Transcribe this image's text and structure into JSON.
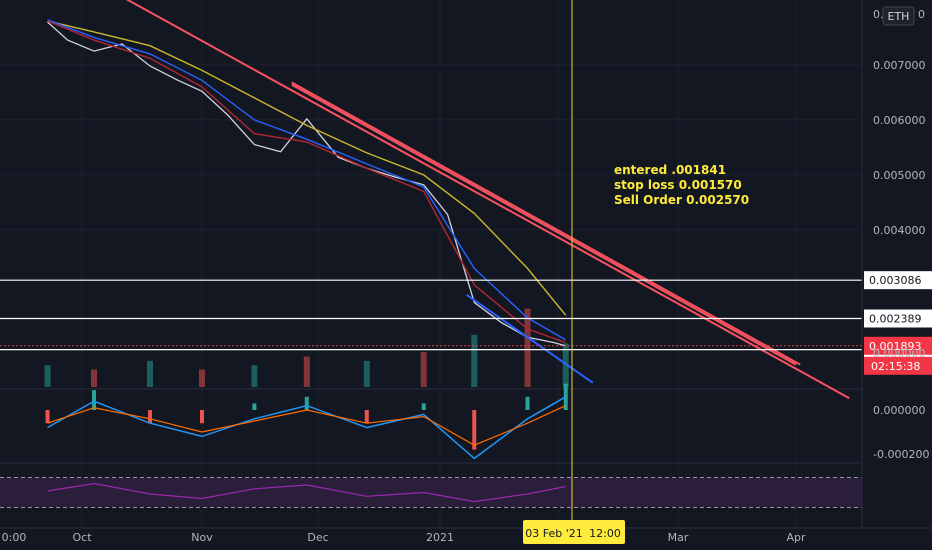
{
  "chart_data": {
    "type": "line",
    "title": "",
    "currency_badge": "ETH",
    "price_axis": {
      "ticks": [
        "0.007000",
        "0.006000",
        "0.005000",
        "0.004000"
      ],
      "top_partial_label": "0.",
      "top_partial_suffix": "0",
      "range": [
        0.00118,
        0.00818
      ]
    },
    "x_axis": {
      "ticks": [
        "0:00",
        "Oct",
        "Nov",
        "Dec",
        "2021",
        "Mar",
        "Apr"
      ]
    },
    "crosshair": {
      "date_label": "03 Feb '21",
      "time_label": "12:00"
    },
    "horizontal_levels": [
      {
        "value": "0.003086",
        "color": "#ffffff"
      },
      {
        "value": "0.002389",
        "color": "#ffffff"
      },
      {
        "value": "0.001823",
        "color": "#ffffff"
      }
    ],
    "last_price": {
      "value": "0.001893",
      "countdown": "02:15:38",
      "color": "#f23645"
    },
    "annotation": [
      "entered .001841",
      "stop loss 0.001570",
      "Sell Order 0.002570"
    ],
    "series": [
      {
        "name": "",
        "color": "#d1d4dc",
        "role": "price",
        "x": [
          "Sep 20",
          "Sep 27",
          "Oct 4",
          "Oct 11",
          "Oct 18",
          "Oct 25",
          "Nov 1",
          "Nov 8",
          "Nov 15",
          "Nov 22",
          "Nov 29",
          "Dec 6",
          "Dec 13",
          "Dec 20",
          "Dec 27",
          "Jan 3",
          "Jan 10",
          "Jan 17",
          "Jan 24",
          "Jan 31",
          "Feb 3"
        ],
        "values": [
          0.00778,
          0.00745,
          0.00725,
          0.00738,
          0.00698,
          0.00672,
          0.00652,
          0.00608,
          0.00555,
          0.00542,
          0.00602,
          0.00532,
          0.00512,
          0.00496,
          0.00482,
          0.00428,
          0.00268,
          0.00232,
          0.00205,
          0.00195,
          0.00189
        ]
      },
      {
        "name": "",
        "color": "#c9b82d",
        "role": "moving-average",
        "x": [
          "Sep 20",
          "Oct 4",
          "Oct 18",
          "Nov 1",
          "Nov 15",
          "Nov 29",
          "Dec 13",
          "Dec 27",
          "Jan 10",
          "Jan 24",
          "Feb 3"
        ],
        "values": [
          0.0078,
          0.0076,
          0.00735,
          0.0069,
          0.0064,
          0.0059,
          0.0054,
          0.005,
          0.0043,
          0.0033,
          0.00245
        ]
      },
      {
        "name": "",
        "color": "#2962ff",
        "role": "moving-average",
        "x": [
          "Sep 20",
          "Oct 4",
          "Oct 18",
          "Nov 1",
          "Nov 15",
          "Nov 29",
          "Dec 13",
          "Dec 27",
          "Jan 10",
          "Jan 24",
          "Feb 3"
        ],
        "values": [
          0.00782,
          0.0075,
          0.0072,
          0.00672,
          0.006,
          0.00565,
          0.0052,
          0.00478,
          0.0033,
          0.0024,
          0.002
        ]
      },
      {
        "name": "",
        "color": "#b22833",
        "role": "moving-average",
        "x": [
          "Sep 20",
          "Oct 4",
          "Oct 18",
          "Nov 1",
          "Nov 15",
          "Nov 29",
          "Dec 13",
          "Dec 27",
          "Jan 10",
          "Jan 24",
          "Feb 3"
        ],
        "values": [
          0.0078,
          0.00745,
          0.00712,
          0.0066,
          0.00575,
          0.0056,
          0.00512,
          0.0047,
          0.003,
          0.0022,
          0.00195
        ]
      }
    ],
    "trendlines": [
      {
        "color": "#f7525f",
        "from": [
          "Oct 10",
          0.00828
        ],
        "to": [
          "Apr 15",
          0.00094
        ]
      },
      {
        "color": "#f7525f",
        "from": [
          "Nov 25",
          0.00668
        ],
        "to": [
          "Mar 30",
          0.00155
        ]
      },
      {
        "color": "#f7525f",
        "from": [
          "Nov 25",
          0.00664
        ],
        "to": [
          "Mar 29",
          0.00155
        ]
      },
      {
        "color": "#2962ff",
        "from": [
          "Jan 8",
          0.00282
        ],
        "to": [
          "Feb 10",
          0.00122
        ]
      }
    ],
    "volume": {
      "axis_label": "0.000000",
      "x": [
        "Sep 20",
        "Oct 4",
        "Oct 18",
        "Nov 1",
        "Nov 15",
        "Nov 29",
        "Dec 13",
        "Dec 27",
        "Jan 10",
        "Jan 24",
        "Feb 3"
      ],
      "values": [
        0.25,
        0.2,
        0.3,
        0.2,
        0.25,
        0.35,
        0.3,
        0.4,
        0.6,
        0.9,
        0.5
      ]
    },
    "macd": {
      "ticks": [
        "0.000000",
        "-0.000200"
      ],
      "x": [
        "Sep 20",
        "Oct 4",
        "Oct 18",
        "Nov 1",
        "Nov 15",
        "Nov 29",
        "Dec 13",
        "Dec 27",
        "Jan 10",
        "Jan 24",
        "Feb 3"
      ],
      "macd_values": [
        -8e-05,
        4e-05,
        -6e-05,
        -0.00012,
        -4e-05,
        2e-05,
        -8e-05,
        -2e-05,
        -0.00022,
        -4e-05,
        6e-05
      ],
      "signal_values": [
        -6e-05,
        1e-05,
        -4e-05,
        -0.0001,
        -5e-05,
        0.0,
        -6e-05,
        -3e-05,
        -0.00016,
        -6e-05,
        2e-05
      ]
    },
    "rsi": {
      "bands": [
        70,
        30
      ],
      "x": [
        "Sep 20",
        "Oct 4",
        "Oct 18",
        "Nov 1",
        "Nov 15",
        "Nov 29",
        "Dec 13",
        "Dec 27",
        "Jan 10",
        "Jan 24",
        "Feb 3"
      ],
      "values": [
        52,
        62,
        48,
        42,
        55,
        60,
        45,
        50,
        38,
        48,
        58
      ]
    },
    "grid": true,
    "legend": "none"
  }
}
